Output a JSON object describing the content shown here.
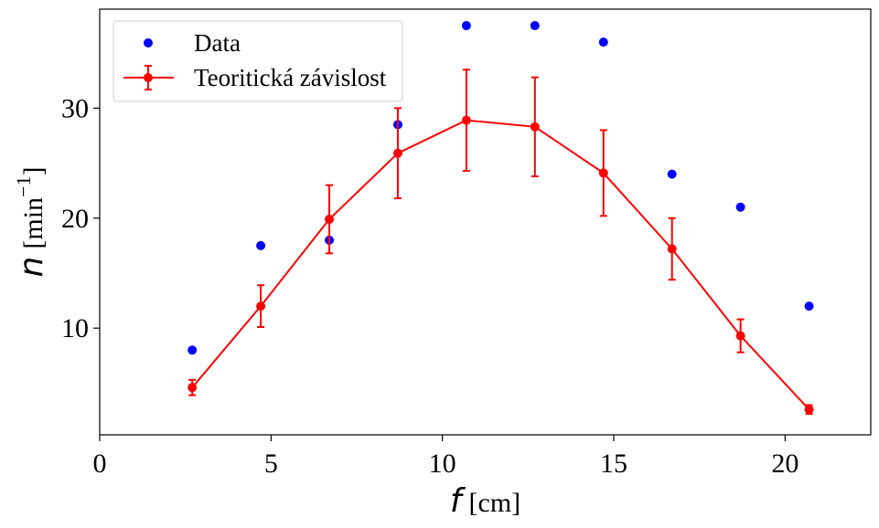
{
  "chart_data": {
    "type": "scatter",
    "title": "",
    "xlabel": {
      "var": "f",
      "unit": "[cm]"
    },
    "ylabel": {
      "var": "n",
      "unit_prefix": "[min",
      "unit_exp": "−1",
      "unit_suffix": "]"
    },
    "xlim": [
      0,
      22.5
    ],
    "ylim": [
      0.3,
      39
    ],
    "xticks": [
      0,
      5,
      10,
      15,
      20
    ],
    "xtick_labels": [
      "0",
      "5",
      "10",
      "15",
      "20"
    ],
    "yticks": [
      10,
      20,
      30
    ],
    "ytick_labels": [
      "10",
      "20",
      "30"
    ],
    "grid": false,
    "legend": "upper-left",
    "series": [
      {
        "name": "Data",
        "kind": "points",
        "color": "#0000ff",
        "x": [
          2.7,
          4.7,
          6.7,
          8.7,
          10.7,
          12.7,
          14.7,
          16.7,
          18.7,
          20.7
        ],
        "y": [
          8.0,
          17.5,
          18.0,
          28.5,
          37.5,
          37.5,
          36.0,
          24.0,
          21.0,
          12.0
        ]
      },
      {
        "name": "Teoritická závislost",
        "kind": "line-errorbar",
        "color": "#ff0000",
        "x": [
          2.7,
          4.7,
          6.7,
          8.7,
          10.7,
          12.7,
          14.7,
          16.7,
          18.7,
          20.7
        ],
        "y": [
          4.6,
          12.0,
          19.9,
          25.9,
          28.9,
          28.3,
          24.1,
          17.2,
          9.3,
          2.6
        ],
        "yerr": [
          0.7,
          1.9,
          3.1,
          4.1,
          4.6,
          4.5,
          3.9,
          2.8,
          1.5,
          0.4
        ]
      }
    ]
  }
}
